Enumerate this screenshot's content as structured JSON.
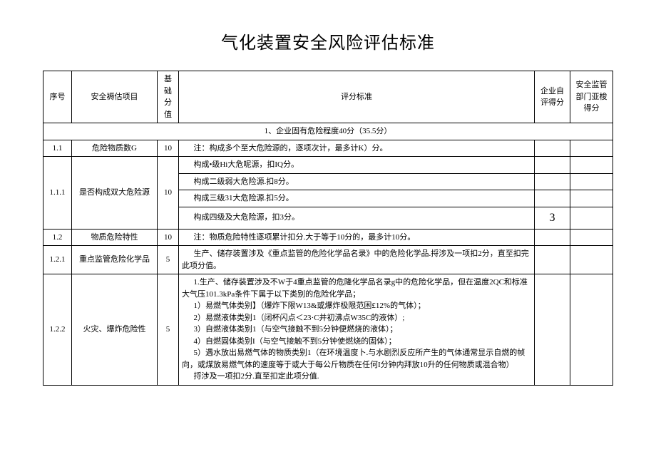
{
  "title": "气化装置安全风险评估标准",
  "headers": {
    "seq": "序号",
    "item": "安全褥估项目",
    "base": "基础分值",
    "criteria": "评分标准",
    "self": "企业自评得分",
    "sup": "安全监管部门亚梭得分"
  },
  "section": "1、企业固有危险程度40分（35.5分）",
  "rows": {
    "r1_1": {
      "seq": "1.1",
      "item": "危险物质数G",
      "base": "10",
      "crit": "注：构成多个至大危险源的，逐项次计，最多计K）分。"
    },
    "r1_1_1": {
      "seq": "1.1.1",
      "item": "是否构成双大危险源",
      "base": "10",
      "c1": "构成•级Hi大危呢源，扣IQ分。",
      "c2": "构成二级弱大危险源.扣8分。",
      "c3": "构成三级31大危险源.扣5分。",
      "c4": "构成四级及大危险源，扣3分。",
      "self4": "3"
    },
    "r1_2": {
      "seq": "1.2",
      "item": "物质危险特性",
      "base": "10",
      "crit": "注：物质危险特性逐项累计扣分.大于等于10分的，最多计10分。"
    },
    "r1_2_1": {
      "seq": "1.2.1",
      "item": "重点监管危险化学品",
      "base": "5",
      "crit": "生产、储存装置涉及《重点监管的危险化学品名录》中的危险化学品.捋涉及一项扣2分，直至扣完此项分值。"
    },
    "r1_2_2": {
      "seq": "1.2.2",
      "item": "火灾、爆炸危险性",
      "base": "5",
      "l1": "1.生产、储存装置涉及不W于4重点监管的危隆化学品名录g中的危险化学品，但在温度2QC和标准大气压101.3kPa条件下属于以下类别的危险化学品；",
      "l2": "1）易燃气体类别】（爆炸下限W13&或爆炸极限范困£12%的气体）；",
      "l3": "2）易燃液体类别1（闭杯闪点＜23·C并初沸点W35C的液体）;",
      "l4": "3）自燃液体类别1（与空气接触不到5分钟便燃烧的液体）；",
      "l5": "4）自燃固体类别I（与空气接触不到5分钟使燃烧的固体）；",
      "l6": "5）遇水放出易燃气体的物质类别1（在环境温度卜.与水剧烈反应所产生的气体通常显示自燃的帧向，或煤放易燃气体的速度等于或大于每公斤物质在任何I分钟内拜放10升的任何物质或混合物）",
      "l7": "捋涉及一项扣2分.直至扣定此项分值."
    }
  }
}
